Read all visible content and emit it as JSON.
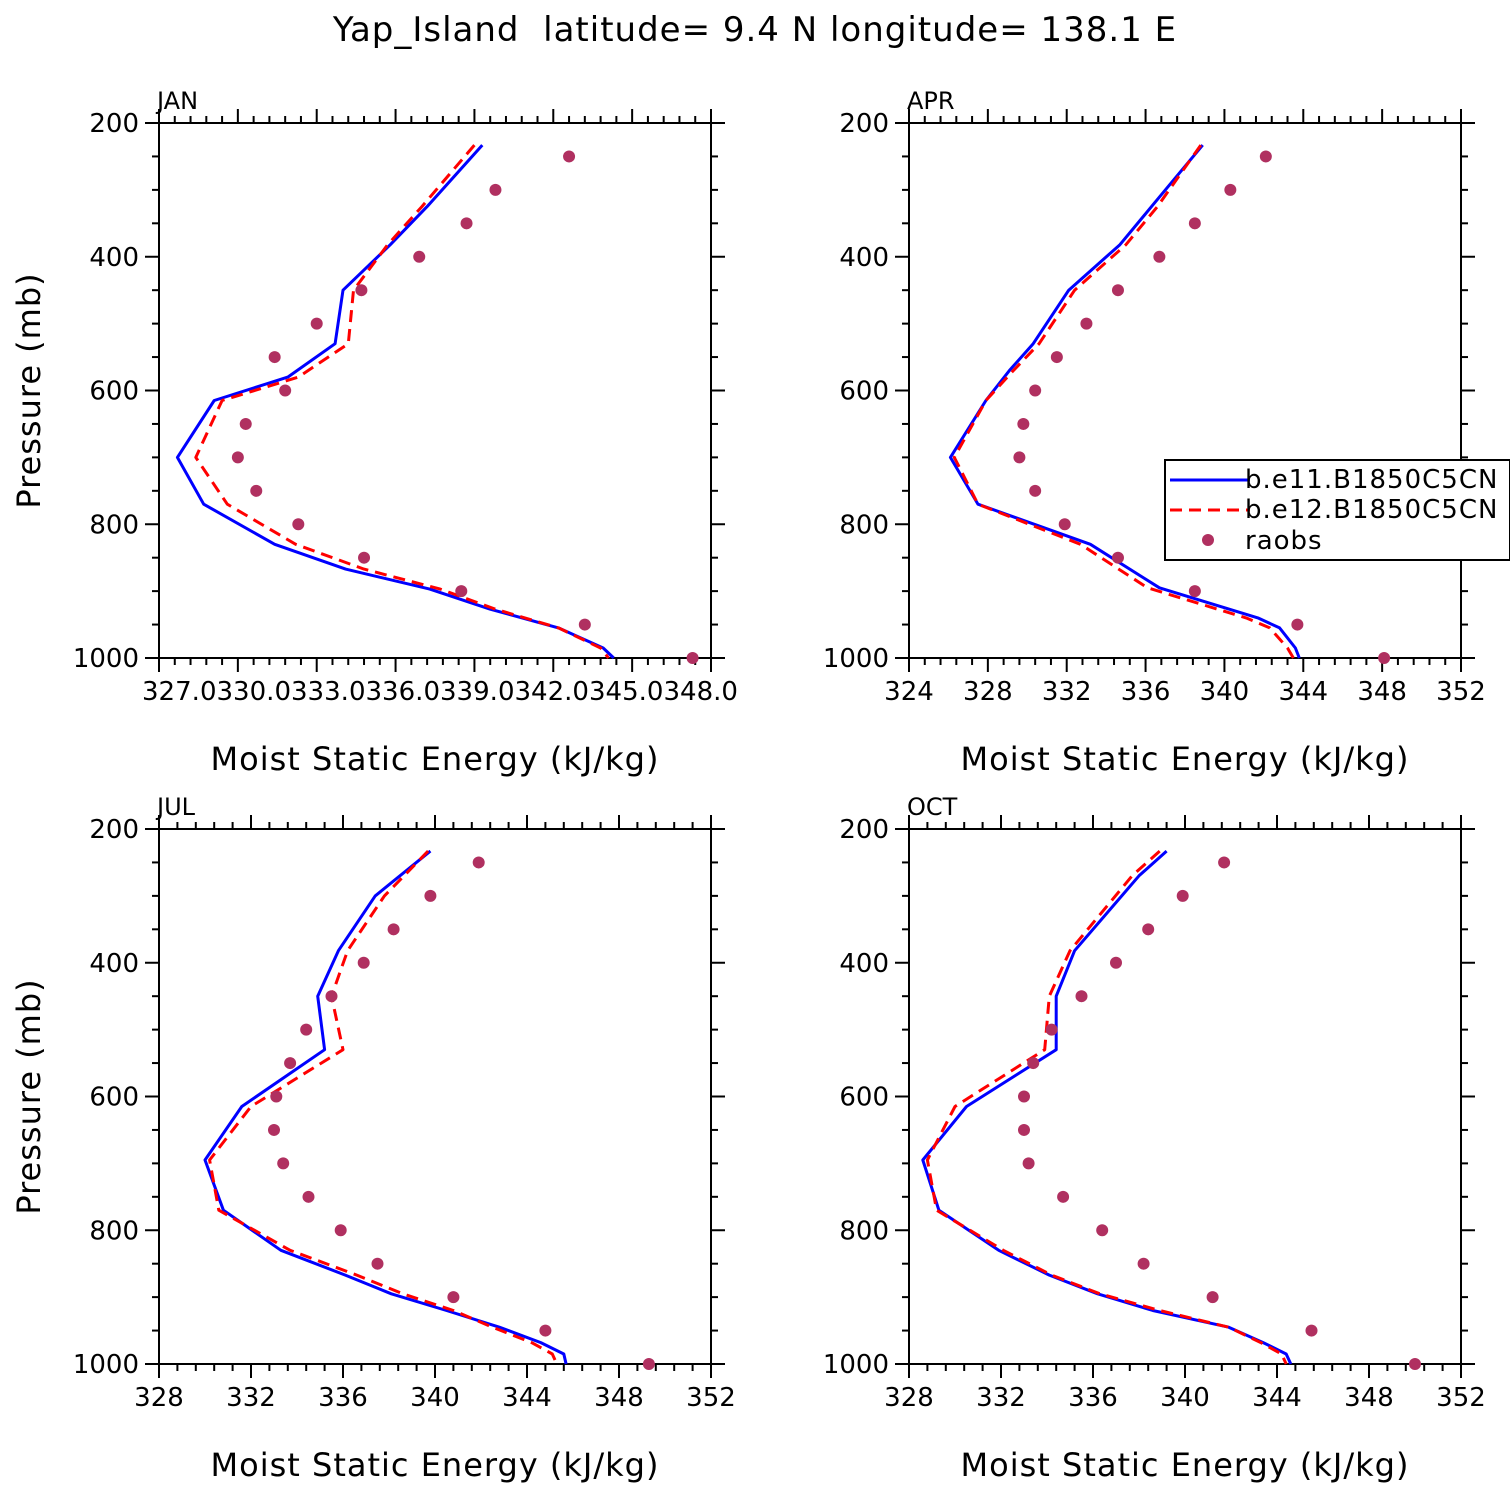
{
  "figure": {
    "title": "Yap_Island  latitude= 9.4 N longitude= 138.1 E"
  },
  "colors": {
    "model1": "#0000ff",
    "model2": "#ff0000",
    "raobs": "#b03060",
    "axis": "#000000"
  },
  "chart_data": [
    {
      "type": "line",
      "panel_label": "JAN",
      "xlabel": "Moist Static Energy (kJ/kg)",
      "ylabel": "Pressure (mb)",
      "xlim": [
        327.0,
        348.0
      ],
      "ylim": [
        1000,
        200
      ],
      "xticks": [
        327.0,
        330.0,
        333.0,
        336.0,
        339.0,
        342.0,
        345.0,
        348.0
      ],
      "xticklabels": [
        "327.0",
        "330.0",
        "333.0",
        "336.0",
        "339.0",
        "342.0",
        "345.0",
        "348.0"
      ],
      "xtick_concatenated": "327.0330.0333.0336.0339.0342.0345.0348.0",
      "yticks": [
        200,
        400,
        600,
        800,
        1000
      ],
      "yticklabels": [
        "200",
        "400",
        "600",
        "800",
        "1000"
      ],
      "series": [
        {
          "kind": "model1",
          "x": [
            339.3,
            337.2,
            335.8,
            334.0,
            333.7,
            331.9,
            329.1,
            327.7,
            328.7,
            331.4,
            334.1,
            337.3,
            339.6,
            342.2,
            343.9,
            344.3
          ],
          "y": [
            233,
            325,
            382,
            450,
            530,
            580,
            615,
            700,
            770,
            830,
            867,
            897,
            927,
            955,
            985,
            1000
          ]
        },
        {
          "kind": "model2",
          "x": [
            339.0,
            337.0,
            335.7,
            334.4,
            334.2,
            332.3,
            329.4,
            328.4,
            329.6,
            332.2,
            334.8,
            337.7,
            339.8,
            342.2,
            343.8,
            344.1
          ],
          "y": [
            233,
            325,
            382,
            450,
            530,
            580,
            615,
            700,
            770,
            830,
            867,
            897,
            927,
            955,
            985,
            1000
          ]
        },
        {
          "kind": "raobs",
          "x": [
            342.6,
            339.8,
            338.7,
            336.9,
            334.7,
            333.0,
            331.4,
            331.8,
            330.3,
            330.0,
            330.7,
            332.3,
            334.8,
            338.5,
            343.2,
            347.3
          ],
          "y": [
            250,
            300,
            350,
            400,
            450,
            500,
            550,
            600,
            650,
            700,
            750,
            800,
            850,
            900,
            950,
            1000
          ]
        }
      ]
    },
    {
      "type": "line",
      "panel_label": "APR",
      "xlabel": "Moist Static Energy (kJ/kg)",
      "ylabel": "",
      "xlim": [
        324,
        352
      ],
      "ylim": [
        1000,
        200
      ],
      "xticks": [
        324,
        328,
        332,
        336,
        340,
        344,
        348,
        352
      ],
      "xticklabels": [
        "324",
        "328",
        "332",
        "336",
        "340",
        "344",
        "348",
        "352"
      ],
      "yticks": [
        200,
        400,
        600,
        800,
        1000
      ],
      "yticklabels": [
        "200",
        "400",
        "600",
        "800",
        "1000"
      ],
      "legend": {
        "placement": "right",
        "entries": [
          "b.e11.B1850C5CN",
          "b.e12.B1850C5CN",
          "raobs"
        ]
      },
      "series": [
        {
          "kind": "model1",
          "x": [
            338.9,
            336.3,
            334.7,
            332.1,
            330.3,
            329.1,
            327.9,
            326.1,
            327.5,
            333.2,
            336.7,
            341.7,
            342.8,
            343.6,
            343.8
          ],
          "y": [
            233,
            325,
            382,
            450,
            530,
            570,
            615,
            700,
            770,
            830,
            895,
            940,
            955,
            985,
            1000
          ]
        },
        {
          "kind": "model2",
          "x": [
            338.8,
            336.6,
            335.0,
            332.4,
            330.6,
            329.3,
            327.9,
            326.3,
            327.5,
            332.7,
            336.1,
            341.1,
            342.3,
            343.2,
            343.5
          ],
          "y": [
            233,
            325,
            382,
            450,
            530,
            570,
            615,
            700,
            770,
            830,
            895,
            940,
            955,
            985,
            1000
          ]
        },
        {
          "kind": "raobs",
          "x": [
            342.1,
            340.3,
            338.5,
            336.7,
            334.6,
            333.0,
            331.5,
            330.4,
            329.8,
            329.6,
            330.4,
            331.9,
            334.6,
            338.5,
            343.7,
            348.1
          ],
          "y": [
            250,
            300,
            350,
            400,
            450,
            500,
            550,
            600,
            650,
            700,
            750,
            800,
            850,
            900,
            950,
            1000
          ]
        }
      ]
    },
    {
      "type": "line",
      "panel_label": "JUL",
      "xlabel": "Moist Static Energy (kJ/kg)",
      "ylabel": "Pressure (mb)",
      "xlim": [
        328,
        352
      ],
      "ylim": [
        1000,
        200
      ],
      "xticks": [
        328,
        332,
        336,
        340,
        344,
        348,
        352
      ],
      "xticklabels": [
        "328",
        "332",
        "336",
        "340",
        "344",
        "348",
        "352"
      ],
      "yticks": [
        200,
        400,
        600,
        800,
        1000
      ],
      "yticklabels": [
        "200",
        "400",
        "600",
        "800",
        "1000"
      ],
      "series": [
        {
          "kind": "model1",
          "x": [
            339.8,
            337.4,
            335.8,
            334.9,
            335.2,
            331.6,
            330.0,
            330.8,
            333.3,
            336.1,
            338.1,
            340.5,
            342.8,
            344.6,
            345.6,
            345.7
          ],
          "y": [
            233,
            300,
            382,
            450,
            530,
            615,
            695,
            770,
            830,
            867,
            895,
            920,
            945,
            968,
            985,
            1000
          ]
        },
        {
          "kind": "model2",
          "x": [
            339.7,
            337.8,
            336.2,
            335.5,
            336.0,
            332.0,
            330.2,
            330.6,
            333.7,
            336.6,
            338.6,
            340.8,
            342.5,
            344.2,
            345.1,
            345.3
          ],
          "y": [
            233,
            300,
            382,
            450,
            530,
            615,
            695,
            770,
            830,
            867,
            895,
            920,
            945,
            968,
            985,
            1000
          ]
        },
        {
          "kind": "raobs",
          "x": [
            341.9,
            339.8,
            338.2,
            336.9,
            335.5,
            334.4,
            333.7,
            333.1,
            333.0,
            333.4,
            334.5,
            335.9,
            337.5,
            340.8,
            344.8,
            349.3
          ],
          "y": [
            250,
            300,
            350,
            400,
            450,
            500,
            550,
            600,
            650,
            700,
            750,
            800,
            850,
            900,
            950,
            1000
          ]
        }
      ]
    },
    {
      "type": "line",
      "panel_label": "OCT",
      "xlabel": "Moist Static Energy (kJ/kg)",
      "ylabel": "",
      "xlim": [
        328,
        352
      ],
      "ylim": [
        1000,
        200
      ],
      "xticks": [
        328,
        332,
        336,
        340,
        344,
        348,
        352
      ],
      "xticklabels": [
        "328",
        "332",
        "336",
        "340",
        "344",
        "348",
        "352"
      ],
      "yticks": [
        200,
        400,
        600,
        800,
        1000
      ],
      "yticklabels": [
        "200",
        "400",
        "600",
        "800",
        "1000"
      ],
      "series": [
        {
          "kind": "model1",
          "x": [
            339.2,
            338.0,
            335.2,
            334.4,
            334.4,
            330.5,
            328.6,
            329.3,
            331.9,
            334.1,
            336.2,
            338.6,
            341.9,
            343.4,
            344.4,
            344.6
          ],
          "y": [
            233,
            270,
            382,
            450,
            530,
            615,
            695,
            770,
            830,
            867,
            895,
            920,
            945,
            968,
            985,
            1000
          ]
        },
        {
          "kind": "model2",
          "x": [
            338.9,
            337.7,
            335.0,
            334.1,
            333.9,
            330.0,
            328.8,
            329.2,
            332.1,
            334.2,
            336.3,
            338.9,
            341.9,
            343.3,
            344.2,
            344.4
          ],
          "y": [
            233,
            270,
            382,
            450,
            530,
            615,
            695,
            770,
            830,
            867,
            895,
            920,
            945,
            968,
            985,
            1000
          ]
        },
        {
          "kind": "raobs",
          "x": [
            341.7,
            339.9,
            338.4,
            337.0,
            335.5,
            334.2,
            333.4,
            333.0,
            333.0,
            333.2,
            334.7,
            336.4,
            338.2,
            341.2,
            345.5,
            350.0
          ],
          "y": [
            250,
            300,
            350,
            400,
            450,
            500,
            550,
            600,
            650,
            700,
            750,
            800,
            850,
            900,
            950,
            1000
          ]
        }
      ]
    }
  ]
}
